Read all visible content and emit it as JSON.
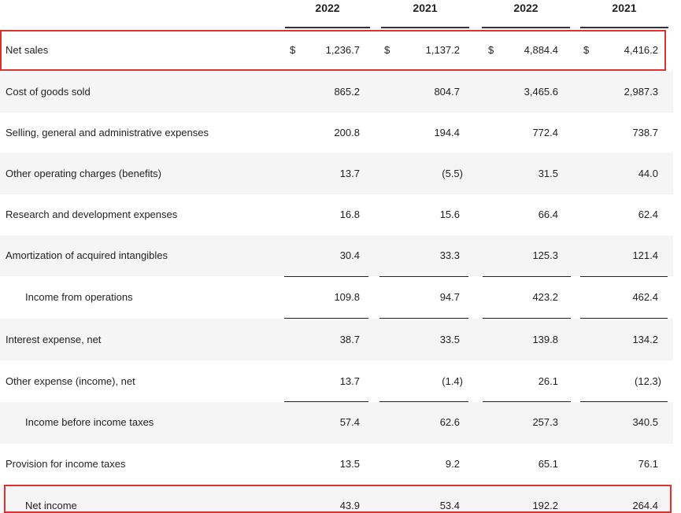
{
  "header": {
    "years": [
      "2022",
      "2021",
      "2022",
      "2021"
    ]
  },
  "currency_symbol": "$",
  "rows": [
    {
      "label": "Net sales",
      "values": [
        "1,236.7",
        "1,137.2",
        "4,884.4",
        "4,416.2"
      ]
    },
    {
      "label": "Cost of goods sold",
      "values": [
        "865.2",
        "804.7",
        "3,465.6",
        "2,987.3"
      ]
    },
    {
      "label": "Selling, general and administrative expenses",
      "values": [
        "200.8",
        "194.4",
        "772.4",
        "738.7"
      ]
    },
    {
      "label": "Other operating charges (benefits)",
      "values": [
        "13.7",
        "(5.5)",
        "31.5",
        "44.0"
      ]
    },
    {
      "label": "Research and development expenses",
      "values": [
        "16.8",
        "15.6",
        "66.4",
        "62.4"
      ]
    },
    {
      "label": "Amortization of acquired intangibles",
      "values": [
        "30.4",
        "33.3",
        "125.3",
        "121.4"
      ]
    },
    {
      "label": "Income from operations",
      "values": [
        "109.8",
        "94.7",
        "423.2",
        "462.4"
      ]
    },
    {
      "label": "Interest expense, net",
      "values": [
        "38.7",
        "33.5",
        "139.8",
        "134.2"
      ]
    },
    {
      "label": "Other expense (income), net",
      "values": [
        "13.7",
        "(1.4)",
        "26.1",
        "(12.3)"
      ]
    },
    {
      "label": "Income before income taxes",
      "values": [
        "57.4",
        "62.6",
        "257.3",
        "340.5"
      ]
    },
    {
      "label": "Provision for income taxes",
      "values": [
        "13.5",
        "9.2",
        "65.1",
        "76.1"
      ]
    },
    {
      "label": "Net income",
      "values": [
        "43.9",
        "53.4",
        "192.2",
        "264.4"
      ]
    }
  ],
  "colors": {
    "highlight": "#e03131",
    "alt_row": "#f5f5f5",
    "rule": "#222222"
  }
}
